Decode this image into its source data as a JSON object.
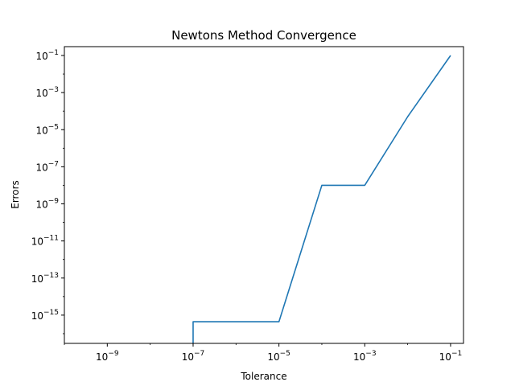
{
  "chart_data": {
    "type": "line",
    "title": "Newtons Method Convergence",
    "xlabel": "Tolerance",
    "ylabel": "Errors",
    "xscale": "log",
    "yscale": "log",
    "xlim": [
      1e-10,
      0.2
    ],
    "ylim": [
      3e-17,
      0.3
    ],
    "grid": false,
    "series": [
      {
        "color": "#1f77b4",
        "x": [
          1e-07,
          1e-07,
          1e-06,
          1e-05,
          0.0001,
          0.001,
          0.01,
          0.1
        ],
        "y": [
          3e-17,
          4.4e-16,
          4.4e-16,
          4.4e-16,
          1e-08,
          1e-08,
          5e-05,
          0.1
        ]
      }
    ],
    "xticks": [
      {
        "value": 1e-09,
        "base": "10",
        "exp": "−9"
      },
      {
        "value": 1e-07,
        "base": "10",
        "exp": "−7"
      },
      {
        "value": 1e-05,
        "base": "10",
        "exp": "−5"
      },
      {
        "value": 0.001,
        "base": "10",
        "exp": "−3"
      },
      {
        "value": 0.1,
        "base": "10",
        "exp": "−1"
      }
    ],
    "yticks": [
      {
        "value": 0.1,
        "base": "10",
        "exp": "−1"
      },
      {
        "value": 0.001,
        "base": "10",
        "exp": "−3"
      },
      {
        "value": 1e-05,
        "base": "10",
        "exp": "−5"
      },
      {
        "value": 1e-07,
        "base": "10",
        "exp": "−7"
      },
      {
        "value": 1e-09,
        "base": "10",
        "exp": "−9"
      },
      {
        "value": 1e-11,
        "base": "10",
        "exp": "−11"
      },
      {
        "value": 1e-13,
        "base": "10",
        "exp": "−13"
      },
      {
        "value": 1e-15,
        "base": "10",
        "exp": "−15"
      }
    ]
  }
}
